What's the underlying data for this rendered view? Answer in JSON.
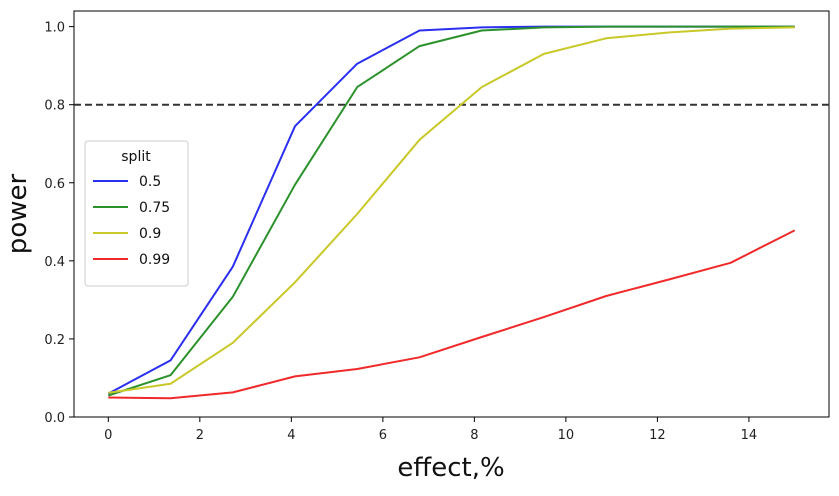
{
  "chart_data": {
    "type": "line",
    "title": "",
    "xlabel": "effect,%",
    "ylabel": "power",
    "xlim": [
      -0.75,
      15.75
    ],
    "ylim": [
      0.0,
      1.04
    ],
    "xticks": [
      0,
      2,
      4,
      6,
      8,
      10,
      12,
      14
    ],
    "xtick_labels": [
      "0",
      "2",
      "4",
      "6",
      "8",
      "10",
      "12",
      "14"
    ],
    "yticks": [
      0.0,
      0.2,
      0.4,
      0.6,
      0.8,
      1.0
    ],
    "ytick_labels": [
      "0.0",
      "0.2",
      "0.4",
      "0.6",
      "0.8",
      "1.0"
    ],
    "grid": false,
    "legend": {
      "title": "split",
      "placement": "center-left"
    },
    "reference_line": {
      "y": 0.8,
      "color": "#333333",
      "style": "dashed"
    },
    "x": [
      0,
      1.36,
      2.72,
      4.08,
      5.44,
      6.8,
      8.16,
      9.52,
      10.88,
      12.24,
      13.6,
      15.0
    ],
    "series": [
      {
        "name": "0.5",
        "color": "#2a2ff0",
        "values": [
          0.06,
          0.145,
          0.385,
          0.745,
          0.905,
          0.99,
          0.998,
          1.0,
          1.0,
          1.0,
          1.0,
          1.0
        ]
      },
      {
        "name": "0.75",
        "color": "#2b912b",
        "values": [
          0.055,
          0.107,
          0.308,
          0.595,
          0.845,
          0.95,
          0.99,
          0.998,
          1.0,
          1.0,
          1.0,
          1.0
        ]
      },
      {
        "name": "0.9",
        "color": "#c8c828",
        "values": [
          0.062,
          0.085,
          0.19,
          0.345,
          0.52,
          0.71,
          0.845,
          0.93,
          0.97,
          0.985,
          0.995,
          0.998
        ]
      },
      {
        "name": "0.99",
        "color": "#f02a2a",
        "values": [
          0.05,
          0.048,
          0.063,
          0.104,
          0.123,
          0.153,
          0.205,
          0.256,
          0.31,
          0.352,
          0.395,
          0.478
        ]
      }
    ]
  }
}
